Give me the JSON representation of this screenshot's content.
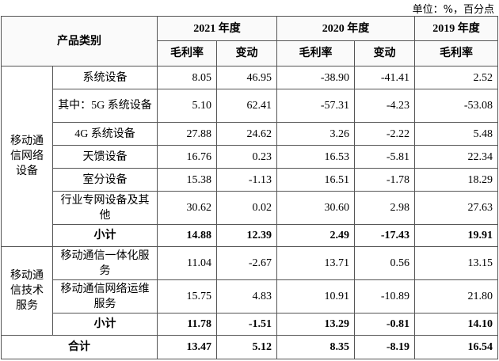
{
  "unit": "单位：%，百分点",
  "columns": {
    "category": "产品类别",
    "years": [
      "2021 年度",
      "2020 年度",
      "2019 年度"
    ],
    "sub": [
      "毛利率",
      "变动",
      "毛利率",
      "变动",
      "毛利率"
    ]
  },
  "groups": [
    {
      "label": "移动通信网络设备",
      "rows": [
        {
          "name": "系统设备",
          "values": [
            "8.05",
            "46.95",
            "-38.90",
            "-41.41",
            "2.52"
          ]
        },
        {
          "name": "其中：5G 系统设备",
          "values": [
            "5.10",
            "62.41",
            "-57.31",
            "-4.23",
            "-53.08"
          ]
        },
        {
          "name": "4G 系统设备",
          "values": [
            "27.88",
            "24.62",
            "3.26",
            "-2.22",
            "5.48"
          ]
        },
        {
          "name": "天馈设备",
          "values": [
            "16.76",
            "0.23",
            "16.53",
            "-5.81",
            "22.34"
          ]
        },
        {
          "name": "室分设备",
          "values": [
            "15.38",
            "-1.13",
            "16.51",
            "-1.78",
            "18.29"
          ]
        },
        {
          "name": "行业专网设备及其他",
          "values": [
            "30.62",
            "0.02",
            "30.60",
            "2.98",
            "27.63"
          ]
        }
      ],
      "subtotal": {
        "label": "小计",
        "values": [
          "14.88",
          "12.39",
          "2.49",
          "-17.43",
          "19.91"
        ]
      }
    },
    {
      "label": "移动通信技术服务",
      "rows": [
        {
          "name": "移动通信一体化服务",
          "values": [
            "11.04",
            "-2.67",
            "13.71",
            "0.56",
            "13.15"
          ]
        },
        {
          "name": "移动通信网络运维服务",
          "values": [
            "15.75",
            "4.83",
            "10.91",
            "-10.89",
            "21.80"
          ]
        }
      ],
      "subtotal": {
        "label": "小计",
        "values": [
          "11.78",
          "-1.51",
          "13.29",
          "-0.81",
          "14.10"
        ]
      }
    }
  ],
  "total": {
    "label": "合计",
    "values": [
      "13.47",
      "5.12",
      "8.35",
      "-8.19",
      "16.54"
    ]
  }
}
